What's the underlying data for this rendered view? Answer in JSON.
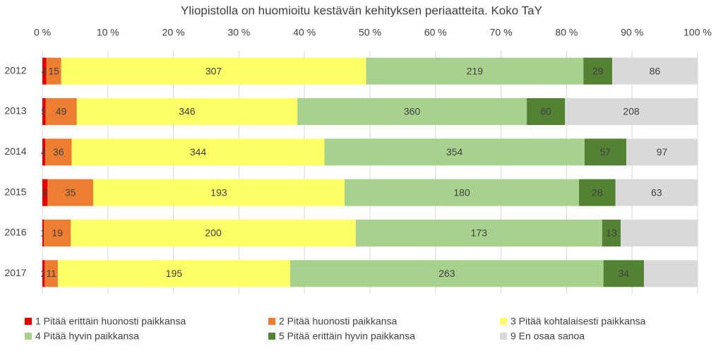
{
  "chart_data": {
    "type": "stacked_bar_100",
    "orientation": "horizontal",
    "title": "Yliopistolla on huomioitu kestävän kehityksen periaatteita. Koko TaY",
    "categories": [
      "2012",
      "2013",
      "2014",
      "2015",
      "2016",
      "2017"
    ],
    "series": [
      {
        "name": "1 Pitää erittäin huonosti paikkansa",
        "color": "#e00000",
        "values": [
          4,
          5,
          4,
          4,
          1,
          2
        ]
      },
      {
        "name": "2 Pitää huonosti paikkansa",
        "color": "#ed7d31",
        "values": [
          15,
          49,
          36,
          35,
          19,
          11
        ]
      },
      {
        "name": "3 Pitää kohtalaisesti paikkansa",
        "color": "#ffff66",
        "values": [
          307,
          346,
          344,
          193,
          200,
          195
        ]
      },
      {
        "name": "4 Pitää hyvin paikkansa",
        "color": "#a9d18e",
        "values": [
          219,
          360,
          354,
          180,
          173,
          263
        ]
      },
      {
        "name": "5 Pitää erittäin hyvin paikkansa",
        "color": "#548235",
        "values": [
          29,
          60,
          57,
          28,
          13,
          34
        ]
      },
      {
        "name": "9 En osaa sanoa",
        "color": "#d9d9d9",
        "values": [
          86,
          208,
          97,
          63,
          54,
          45
        ],
        "value_labels": [
          "86",
          "208",
          "97",
          "63",
          null,
          null
        ]
      }
    ],
    "xlim": [
      0,
      100
    ],
    "xticks": [
      {
        "value": 0,
        "label": "0 %"
      },
      {
        "value": 10,
        "label": "10 %"
      },
      {
        "value": 20,
        "label": "20 %"
      },
      {
        "value": 30,
        "label": "30 %"
      },
      {
        "value": 40,
        "label": "40 %"
      },
      {
        "value": 50,
        "label": "50 %"
      },
      {
        "value": 60,
        "label": "60 %"
      },
      {
        "value": 70,
        "label": "70 %"
      },
      {
        "value": 80,
        "label": "80 %"
      },
      {
        "value": 90,
        "label": "90 %"
      },
      {
        "value": 100,
        "label": "100 %"
      }
    ],
    "grid": true,
    "legend": "bottom"
  }
}
